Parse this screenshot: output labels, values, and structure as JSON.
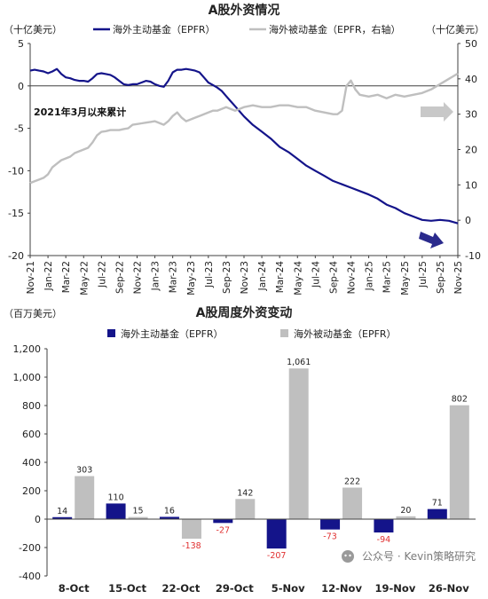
{
  "colors": {
    "active": "#14148a",
    "passive": "#bfbfbf",
    "negative_label": "#e03030",
    "axis": "#404040",
    "text": "#222222",
    "arrow_gray": "#c8c8c8",
    "arrow_navy": "#2a2a8c"
  },
  "watermark": "公众号 · Kevin策略研究",
  "chart_data": [
    {
      "type": "line",
      "title": "A股外资情况",
      "left_unit": "（十亿美元）",
      "right_unit": "（十亿美元）",
      "annotation": "2021年3月以来累计",
      "legend_placement": "top",
      "x_tick_labels": [
        "Nov-21",
        "Jan-22",
        "Mar-22",
        "May-22",
        "Jul-22",
        "Sep-22",
        "Nov-22",
        "Jan-23",
        "Mar-23",
        "May-23",
        "Jul-23",
        "Sep-23",
        "Nov-23",
        "Jan-24",
        "Mar-24",
        "May-24",
        "Jul-24",
        "Sep-24",
        "Nov-24",
        "Jan-25",
        "Mar-25",
        "May-25",
        "Jul-25",
        "Sep-25",
        "Nov-25"
      ],
      "ylim_left": [
        -20,
        5
      ],
      "yticks_left": [
        5,
        0,
        -5,
        -10,
        -15,
        -20
      ],
      "ylim_right": [
        -10,
        50
      ],
      "yticks_right": [
        50,
        40,
        30,
        20,
        10,
        0,
        -10
      ],
      "series": [
        {
          "name": "海外主动基金（EPFR）",
          "axis": "left",
          "x_months": [
            0,
            0.5,
            1,
            1.5,
            2,
            2.5,
            3,
            3.5,
            4,
            4.5,
            5,
            5.5,
            6,
            6.5,
            7,
            7.5,
            8,
            8.5,
            9,
            9.5,
            10,
            10.5,
            11,
            11.5,
            12,
            12.5,
            13,
            13.5,
            14,
            14.5,
            15,
            15.5,
            16,
            16.5,
            17,
            17.5,
            18,
            18.5,
            19,
            19.5,
            20,
            20.5,
            21,
            21.5,
            22,
            22.5,
            23,
            24,
            25,
            26,
            27,
            28,
            29,
            30,
            31,
            32,
            33,
            34,
            35,
            36,
            37,
            38,
            39,
            40,
            41,
            42,
            43,
            44,
            45,
            46,
            47,
            48
          ],
          "values": [
            1.8,
            1.9,
            1.8,
            1.7,
            1.5,
            1.7,
            2.0,
            1.4,
            1.0,
            0.9,
            0.7,
            0.6,
            0.6,
            0.5,
            0.9,
            1.4,
            1.5,
            1.4,
            1.3,
            1.0,
            0.6,
            0.2,
            0.1,
            0.2,
            0.2,
            0.4,
            0.6,
            0.5,
            0.2,
            0.0,
            -0.1,
            0.6,
            1.6,
            1.9,
            1.9,
            2.0,
            1.9,
            1.8,
            1.6,
            1.0,
            0.4,
            0.1,
            -0.2,
            -0.6,
            -1.2,
            -1.8,
            -2.4,
            -3.6,
            -4.6,
            -5.4,
            -6.2,
            -7.2,
            -7.8,
            -8.6,
            -9.4,
            -10.0,
            -10.6,
            -11.2,
            -11.6,
            -12.0,
            -12.4,
            -12.8,
            -13.3,
            -14.0,
            -14.4,
            -15.0,
            -15.4,
            -15.8,
            -15.9,
            -15.8,
            -15.9,
            -16.2
          ]
        },
        {
          "name": "海外被动基金（EPFR，右轴）",
          "axis": "right",
          "x_months": [
            0,
            0.5,
            1,
            1.5,
            2,
            2.5,
            3,
            3.5,
            4,
            4.5,
            5,
            5.5,
            6,
            6.5,
            7,
            7.5,
            8,
            8.5,
            9,
            9.5,
            10,
            10.5,
            11,
            11.5,
            12,
            12.5,
            13,
            13.5,
            14,
            14.5,
            15,
            15.5,
            16,
            16.5,
            17,
            17.5,
            18,
            18.5,
            19,
            19.5,
            20,
            20.5,
            21,
            21.5,
            22,
            22.5,
            23,
            24,
            25,
            26,
            27,
            28,
            29,
            30,
            31,
            32,
            33,
            34,
            34.5,
            35,
            35.5,
            36,
            36.5,
            37,
            38,
            39,
            40,
            41,
            42,
            43,
            44,
            45,
            46,
            47,
            48
          ],
          "values": [
            10.5,
            11,
            11.5,
            12,
            13,
            15,
            16,
            17,
            17.5,
            18,
            19,
            19.5,
            20,
            20.5,
            22,
            24,
            25,
            25.2,
            25.5,
            25.5,
            25.5,
            25.8,
            26,
            27,
            27.2,
            27.4,
            27.6,
            27.8,
            28,
            27.5,
            27,
            28,
            29.5,
            30.5,
            29,
            28,
            28.5,
            29,
            29.5,
            30,
            30.5,
            31,
            31,
            31.5,
            32,
            31.5,
            31,
            32,
            32.5,
            32,
            32,
            32.5,
            32.5,
            32,
            32,
            31,
            30.5,
            30,
            30,
            31,
            38,
            39.5,
            37,
            35.5,
            35,
            35.5,
            34.5,
            35.5,
            35,
            35.5,
            36,
            37,
            38.5,
            40,
            41.5
          ]
        }
      ]
    },
    {
      "type": "bar",
      "title": "A股周度外资变动",
      "unit": "（百万美元）",
      "legend_placement": "top",
      "categories": [
        "8-Oct",
        "15-Oct",
        "22-Oct",
        "29-Oct",
        "5-Nov",
        "12-Nov",
        "19-Nov",
        "26-Nov"
      ],
      "ylim": [
        -400,
        1200
      ],
      "yticks": [
        1200,
        1000,
        800,
        600,
        400,
        200,
        0,
        -200,
        -400
      ],
      "ytick_labels": [
        "1,200",
        "1,000",
        "800",
        "600",
        "400",
        "200",
        "0",
        "-200",
        "-400"
      ],
      "series": [
        {
          "name": "海外主动基金（EPFR）",
          "values": [
            14,
            110,
            16,
            -27,
            -207,
            -73,
            -94,
            71
          ],
          "labels": [
            "14",
            "110",
            "16",
            "-27",
            "-207",
            "-73",
            "-94",
            "71"
          ]
        },
        {
          "name": "海外被动基金（EPFR）",
          "values": [
            303,
            15,
            -138,
            142,
            1061,
            222,
            20,
            802
          ],
          "labels": [
            "303",
            "15",
            "-138",
            "142",
            "1,061",
            "222",
            "20",
            "802"
          ]
        }
      ]
    }
  ]
}
